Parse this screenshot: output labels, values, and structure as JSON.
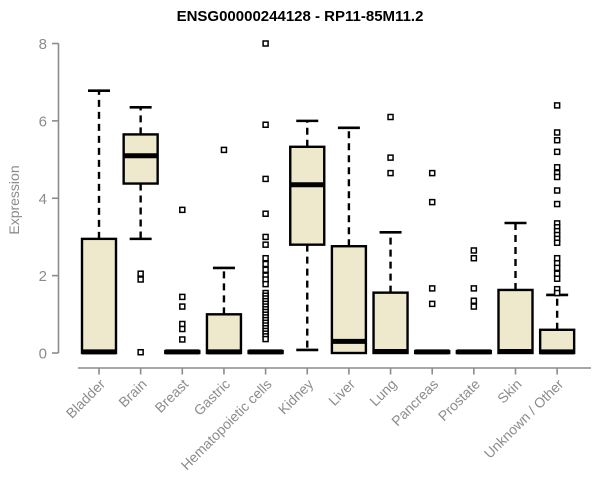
{
  "header": {
    "title": "ENSG00000244128 - RP11-85M11.2"
  },
  "chart_data": {
    "type": "boxplot",
    "title": "ENSG00000244128 - RP11-85M11.2",
    "xlabel": "",
    "ylabel": "Expression",
    "ylim": [
      0,
      8
    ],
    "yticks": [
      0,
      2,
      4,
      6,
      8
    ],
    "grid": false,
    "legend": "none",
    "categories": [
      "Bladder",
      "Brain",
      "Breast",
      "Gastric",
      "Hematopoietic cells",
      "Kidney",
      "Liver",
      "Lung",
      "Pancreas",
      "Prostate",
      "Skin",
      "Unknown / Other"
    ],
    "series": [
      {
        "category": "Bladder",
        "whisker_min": 0,
        "q1": 0,
        "median": 0.03,
        "q3": 2.95,
        "whisker_max": 6.78,
        "outliers": []
      },
      {
        "category": "Brain",
        "whisker_min": 2.95,
        "q1": 4.38,
        "median": 5.1,
        "q3": 5.65,
        "whisker_max": 6.35,
        "outliers": [
          2.05,
          1.9,
          0.02
        ]
      },
      {
        "category": "Breast",
        "whisker_min": 0,
        "q1": 0,
        "median": 0.03,
        "q3": 0.05,
        "whisker_max": 0.05,
        "outliers": [
          3.7,
          1.45,
          1.2,
          0.75,
          0.62,
          0.35
        ]
      },
      {
        "category": "Gastric",
        "whisker_min": 0,
        "q1": 0,
        "median": 0.03,
        "q3": 1.0,
        "whisker_max": 2.2,
        "outliers": [
          5.25
        ]
      },
      {
        "category": "Hematopoietic cells",
        "whisker_min": 0,
        "q1": 0,
        "median": 0.03,
        "q3": 0.05,
        "whisker_max": 0.05,
        "outliers": [
          8.0,
          5.9,
          4.5,
          3.6,
          3.0,
          2.8,
          2.45,
          2.3,
          2.15,
          2.0,
          1.9,
          1.78,
          1.55,
          1.48,
          1.41,
          1.34,
          1.27,
          1.2,
          1.13,
          1.06,
          0.99,
          0.92,
          0.85,
          0.78,
          0.71,
          0.64,
          0.57,
          0.5,
          0.43,
          0.36
        ]
      },
      {
        "category": "Kidney",
        "whisker_min": 0.08,
        "q1": 2.8,
        "median": 4.35,
        "q3": 5.33,
        "whisker_max": 6.0,
        "outliers": []
      },
      {
        "category": "Liver",
        "whisker_min": 0,
        "q1": 0,
        "median": 0.3,
        "q3": 2.76,
        "whisker_max": 5.82,
        "outliers": []
      },
      {
        "category": "Lung",
        "whisker_min": 0,
        "q1": 0,
        "median": 0.04,
        "q3": 1.56,
        "whisker_max": 3.12,
        "outliers": [
          6.1,
          5.05,
          4.65
        ]
      },
      {
        "category": "Pancreas",
        "whisker_min": 0,
        "q1": 0,
        "median": 0.03,
        "q3": 0.05,
        "whisker_max": 0.05,
        "outliers": [
          4.65,
          3.9,
          1.67,
          1.27
        ]
      },
      {
        "category": "Prostate",
        "whisker_min": 0,
        "q1": 0,
        "median": 0.03,
        "q3": 0.05,
        "whisker_max": 0.05,
        "outliers": [
          2.65,
          2.45,
          1.67,
          1.35,
          1.2
        ]
      },
      {
        "category": "Skin",
        "whisker_min": 0,
        "q1": 0,
        "median": 0.04,
        "q3": 1.63,
        "whisker_max": 3.36,
        "outliers": []
      },
      {
        "category": "Unknown / Other",
        "whisker_min": 0,
        "q1": 0,
        "median": 0.03,
        "q3": 0.6,
        "whisker_max": 1.5,
        "outliers": [
          6.4,
          5.7,
          5.5,
          5.2,
          4.8,
          4.65,
          4.55,
          4.2,
          3.85,
          3.35,
          3.25,
          3.15,
          3.05,
          2.95,
          2.85,
          2.45,
          2.32,
          2.2,
          2.05,
          1.92,
          1.65,
          1.55
        ]
      }
    ],
    "colors": {
      "box_fill": "#EEE8CD",
      "box_border": "#000000",
      "median": "#000000",
      "outlier_fill": "#ffffff",
      "axis": "#8c8c8c",
      "tick_label": "#8c8c8c",
      "title": "#000000",
      "background": "#ffffff"
    }
  }
}
